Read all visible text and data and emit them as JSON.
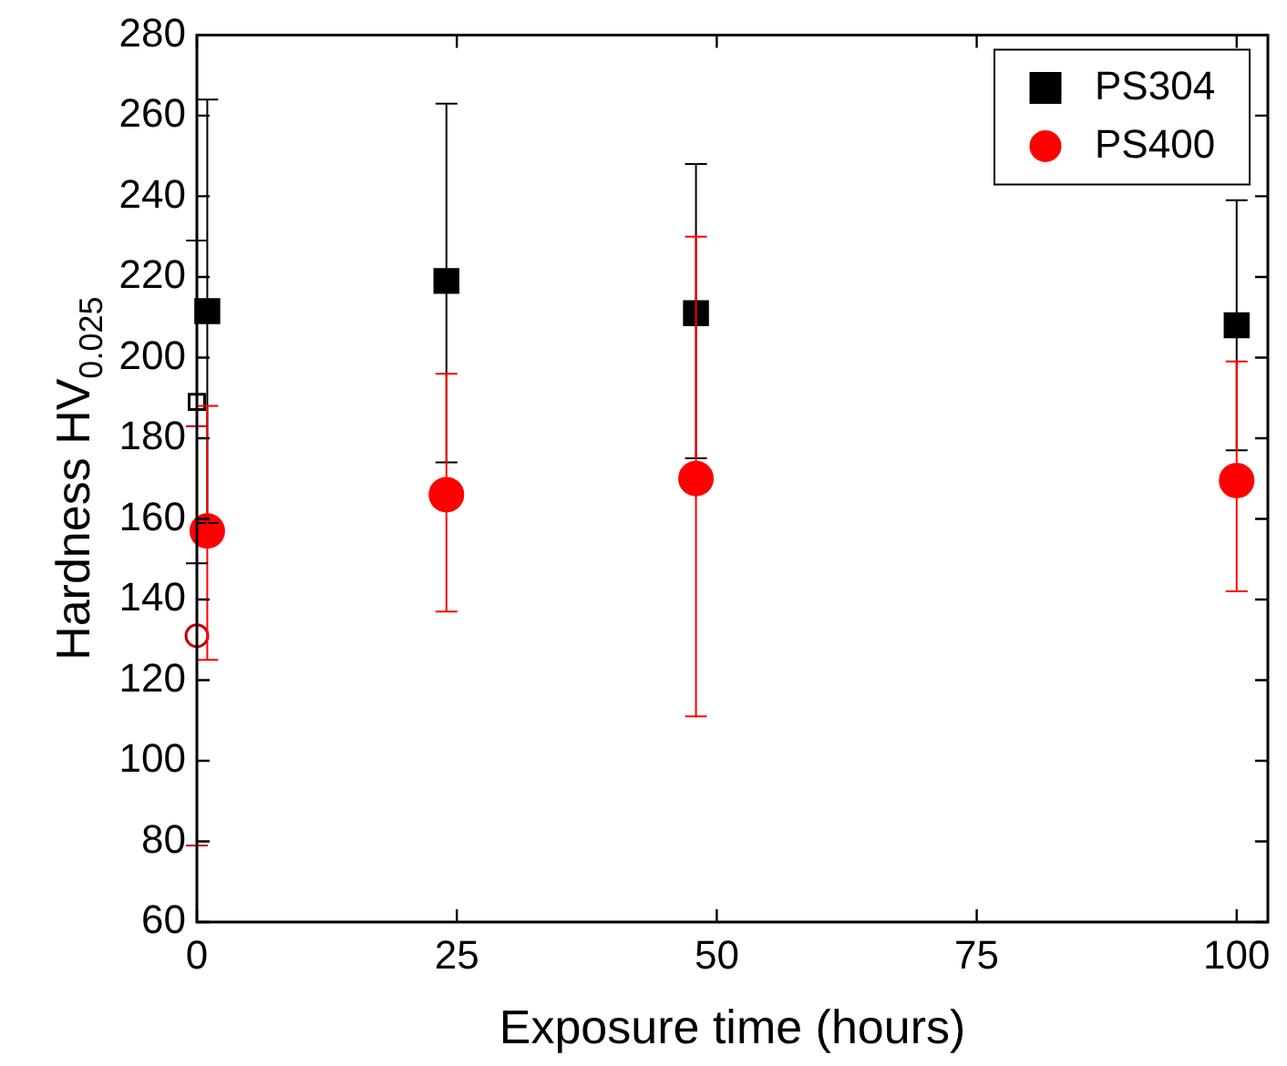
{
  "chart_data": {
    "type": "scatter",
    "xlabel": "Exposure time (hours)",
    "ylabel": "Hardness HV$_{0.025}$",
    "xlim": [
      0,
      103
    ],
    "xticks": [
      0,
      25,
      50,
      75,
      100
    ],
    "ylim": [
      60,
      280
    ],
    "yticks": [
      60,
      80,
      100,
      120,
      140,
      160,
      180,
      200,
      220,
      240,
      260,
      280
    ],
    "grid": false,
    "legend": "top right",
    "series": [
      {
        "name": "PS304",
        "color": "#000000",
        "marker": "square",
        "x": [
          1,
          24,
          48,
          100
        ],
        "values": [
          211.5,
          219,
          211,
          208
        ],
        "errors": [
          [
            159,
            264
          ],
          [
            174,
            263
          ],
          [
            175,
            248
          ],
          [
            177,
            239
          ]
        ]
      },
      {
        "name": "PS400",
        "color": "#ff0000",
        "marker": "circle",
        "x": [
          1,
          24,
          48,
          100
        ],
        "values": [
          157,
          166,
          170,
          169.5
        ],
        "errors": [
          [
            125,
            188
          ],
          [
            137,
            196
          ],
          [
            111,
            230
          ],
          [
            142,
            199
          ]
        ]
      },
      {
        "color": "#000000",
        "marker": "square-open",
        "x": [
          0
        ],
        "values": [
          189
        ],
        "errors": [
          [
            149,
            229
          ]
        ]
      },
      {
        "color": "#c00000",
        "marker": "circle-open",
        "x": [
          0
        ],
        "values": [
          131
        ],
        "errors": [
          [
            79,
            183
          ]
        ]
      }
    ]
  }
}
